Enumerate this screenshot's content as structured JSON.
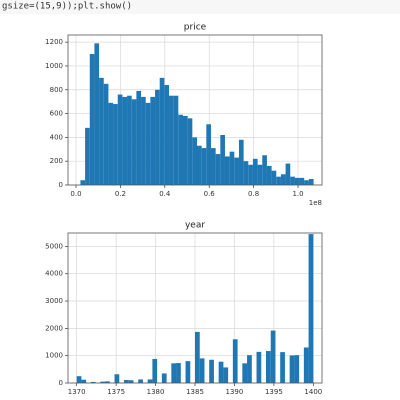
{
  "code": "gsize=(15,9));plt.show()",
  "chart_data": [
    {
      "type": "histogram",
      "title": "price",
      "x_offset_label": "1e8",
      "color": "#1f77b4",
      "grid": true,
      "bins": [
        0.02,
        0.041,
        0.062,
        0.083,
        0.104,
        0.125,
        0.146,
        0.167,
        0.188,
        0.209,
        0.23,
        0.251,
        0.272,
        0.293,
        0.314,
        0.335,
        0.356,
        0.377,
        0.398,
        0.419,
        0.44,
        0.461,
        0.482,
        0.503,
        0.524,
        0.545,
        0.566,
        0.587,
        0.608,
        0.629,
        0.65,
        0.671,
        0.692,
        0.713,
        0.734,
        0.755,
        0.776,
        0.797,
        0.818,
        0.839,
        0.86,
        0.881,
        0.902,
        0.923,
        0.944,
        0.965,
        0.986,
        1.007,
        1.028,
        1.049,
        1.07
      ],
      "values": [
        40,
        480,
        1100,
        1190,
        900,
        850,
        690,
        680,
        760,
        740,
        750,
        720,
        790,
        740,
        690,
        740,
        800,
        900,
        840,
        750,
        750,
        590,
        580,
        560,
        400,
        330,
        310,
        510,
        310,
        260,
        420,
        240,
        280,
        230,
        380,
        200,
        170,
        220,
        170,
        250,
        160,
        120,
        70,
        90,
        180,
        70,
        60,
        60,
        40,
        50
      ],
      "xlim": [
        -0.036,
        1.108
      ],
      "ylim": [
        0,
        1260
      ],
      "xticks": [
        {
          "value": 0,
          "label": "0.0"
        },
        0.2,
        0.4,
        0.6,
        0.8,
        {
          "value": 1,
          "label": "1.0"
        }
      ],
      "yticks": [
        0,
        200,
        400,
        600,
        800,
        1000,
        1200
      ]
    },
    {
      "type": "histogram",
      "title": "year",
      "color": "#1f77b4",
      "grid": true,
      "bins": [
        1370,
        1370.6,
        1371.2,
        1371.8,
        1372.4,
        1373,
        1373.6,
        1374.2,
        1374.8,
        1375.4,
        1376,
        1376.6,
        1377.2,
        1377.8,
        1378.4,
        1379,
        1379.6,
        1380.2,
        1380.8,
        1381.4,
        1382,
        1382.6,
        1383.2,
        1383.8,
        1384.4,
        1385,
        1385.6,
        1386.2,
        1386.8,
        1387.4,
        1388,
        1388.6,
        1389.2,
        1389.8,
        1390.4,
        1391,
        1391.6,
        1392.2,
        1392.8,
        1393.4,
        1394,
        1394.6,
        1395.2,
        1395.8,
        1396.4,
        1397,
        1397.6,
        1398.2,
        1398.8,
        1399.4,
        1400
      ],
      "values": [
        250,
        120,
        0,
        40,
        0,
        50,
        60,
        0,
        320,
        0,
        110,
        100,
        0,
        130,
        0,
        130,
        880,
        0,
        350,
        0,
        720,
        730,
        0,
        800,
        0,
        1870,
        900,
        0,
        850,
        0,
        780,
        570,
        0,
        1600,
        0,
        720,
        1020,
        0,
        1140,
        0,
        1170,
        1920,
        0,
        1130,
        0,
        1010,
        1020,
        0,
        1300,
        5450
      ],
      "xlim": [
        1368.9,
        1401.1
      ],
      "ylim": [
        0,
        5490
      ],
      "xticks": [
        1370,
        1375,
        1380,
        1385,
        1390,
        1395,
        1400
      ],
      "yticks": [
        0,
        1000,
        2000,
        3000,
        4000,
        5000
      ]
    }
  ]
}
